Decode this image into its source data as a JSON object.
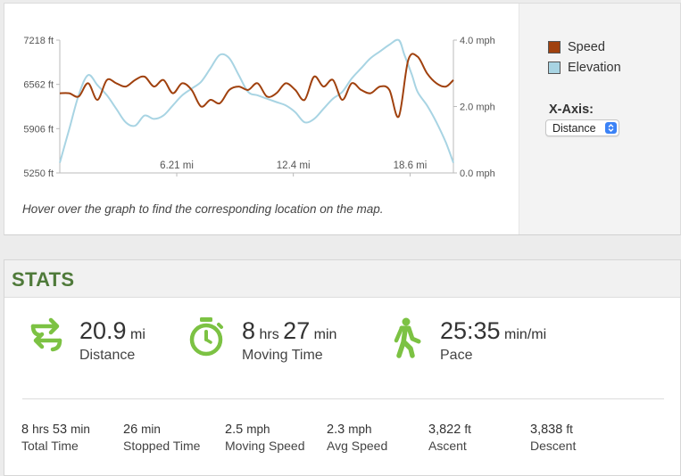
{
  "chart": {
    "y_left_ticks": [
      "7218 ft",
      "6562 ft",
      "5906 ft",
      "5250 ft"
    ],
    "y_right_ticks": [
      "4.0 mph",
      "2.0 mph",
      "0.0 mph"
    ],
    "x_ticks": [
      "6.21 mi",
      "12.4 mi",
      "18.6 mi"
    ],
    "hint": "Hover over the graph to find the corresponding location on the map.",
    "colors": {
      "speed": "#a0410e",
      "elevation": "#a8d4e3"
    }
  },
  "chart_data": {
    "type": "line",
    "x_axis": "distance",
    "xlim": [
      0,
      20.9
    ],
    "x_ticks": [
      6.21,
      12.4,
      18.6
    ],
    "left_axis": {
      "quantity": "elevation",
      "unit": "ft",
      "ylim": [
        5250,
        7218
      ],
      "ticks": [
        5250,
        5906,
        6562,
        7218
      ]
    },
    "right_axis": {
      "quantity": "speed",
      "unit": "mph",
      "ylim": [
        0,
        4.0
      ],
      "ticks": [
        0,
        2.0,
        4.0
      ]
    },
    "series": [
      {
        "name": "Elevation",
        "axis": "left",
        "color": "#a8d4e3",
        "x": [
          0,
          0.5,
          1.0,
          1.5,
          2.0,
          2.5,
          3.0,
          3.5,
          4.0,
          4.5,
          5.0,
          5.5,
          6.0,
          6.5,
          7.0,
          7.5,
          8.0,
          8.5,
          9.0,
          9.5,
          10.0,
          10.5,
          11.0,
          11.5,
          12.0,
          12.5,
          13.0,
          13.5,
          14.0,
          14.5,
          15.0,
          15.5,
          16.0,
          16.5,
          17.0,
          17.5,
          18.0,
          18.3,
          18.7,
          19.0,
          19.5,
          20.0,
          20.5,
          20.9
        ],
        "y": [
          5400,
          5900,
          6400,
          6700,
          6550,
          6400,
          6200,
          6000,
          5950,
          6100,
          6050,
          6100,
          6250,
          6400,
          6500,
          6600,
          6800,
          7000,
          6950,
          6700,
          6450,
          6400,
          6350,
          6300,
          6250,
          6150,
          6000,
          6050,
          6200,
          6350,
          6450,
          6650,
          6800,
          6950,
          7050,
          7150,
          7250,
          7000,
          6700,
          6450,
          6250,
          6000,
          5700,
          5400
        ]
      },
      {
        "name": "Speed",
        "axis": "right",
        "color": "#a0410e",
        "x": [
          0,
          0.5,
          1.0,
          1.5,
          2.0,
          2.5,
          3.0,
          3.5,
          4.0,
          4.5,
          5.0,
          5.5,
          6.0,
          6.5,
          7.0,
          7.5,
          8.0,
          8.5,
          9.0,
          9.5,
          10.0,
          10.5,
          11.0,
          11.5,
          12.0,
          12.5,
          13.0,
          13.5,
          14.0,
          14.5,
          15.0,
          15.5,
          16.0,
          16.5,
          17.0,
          17.5,
          18.0,
          18.5,
          19.0,
          19.5,
          20.0,
          20.5,
          20.9
        ],
        "y": [
          2.4,
          2.4,
          2.3,
          2.7,
          2.2,
          2.8,
          2.7,
          2.6,
          2.8,
          2.9,
          2.6,
          2.8,
          2.4,
          2.7,
          2.5,
          2.0,
          2.2,
          2.1,
          2.5,
          2.6,
          2.5,
          2.7,
          2.3,
          2.4,
          2.7,
          2.5,
          2.2,
          2.9,
          2.6,
          2.8,
          2.2,
          2.7,
          2.5,
          2.4,
          2.6,
          2.5,
          1.7,
          3.4,
          3.5,
          3.0,
          2.7,
          2.6,
          2.8
        ]
      }
    ]
  },
  "legend": {
    "speed": "Speed",
    "elevation": "Elevation"
  },
  "xaxis_control": {
    "label": "X-Axis:",
    "selected": "Distance"
  },
  "stats": {
    "title": "STATS",
    "distance": {
      "value": "20.9",
      "unit": "mi",
      "label": "Distance"
    },
    "moving_time": {
      "hrs": "8",
      "hrs_unit": "hrs",
      "min": "27",
      "min_unit": "min",
      "label": "Moving Time"
    },
    "pace": {
      "value": "25:35",
      "unit": "min/mi",
      "label": "Pace"
    },
    "secondary": [
      {
        "value": "8",
        "unit": "hrs",
        "value2": "53",
        "unit2": "min",
        "label": "Total Time"
      },
      {
        "value": "26",
        "unit": "min",
        "label": "Stopped Time"
      },
      {
        "value": "2.5",
        "unit": "mph",
        "label": "Moving Speed"
      },
      {
        "value": "2.3",
        "unit": "mph",
        "label": "Avg Speed"
      },
      {
        "value": "3,822",
        "unit": "ft",
        "label": "Ascent"
      },
      {
        "value": "3,838",
        "unit": "ft",
        "label": "Descent"
      }
    ],
    "icon_color": "#7cc243"
  }
}
